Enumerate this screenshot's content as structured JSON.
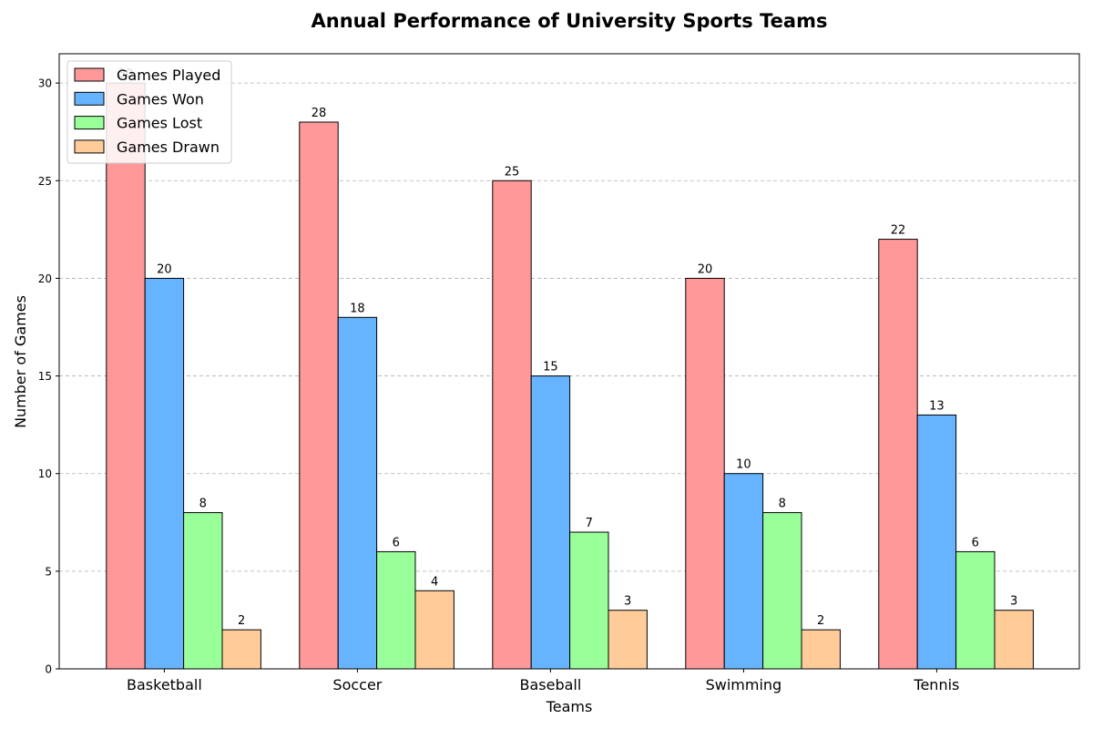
{
  "chart_data": {
    "type": "bar",
    "title": "Annual Performance of University Sports Teams",
    "xlabel": "Teams",
    "ylabel": "Number of Games",
    "categories": [
      "Basketball",
      "Soccer",
      "Baseball",
      "Swimming",
      "Tennis"
    ],
    "series": [
      {
        "name": "Games Played",
        "values": [
          30,
          28,
          25,
          20,
          22
        ],
        "color": "#ff9999"
      },
      {
        "name": "Games Won",
        "values": [
          20,
          18,
          15,
          10,
          13
        ],
        "color": "#66b3ff"
      },
      {
        "name": "Games Lost",
        "values": [
          8,
          6,
          7,
          8,
          6
        ],
        "color": "#99ff99"
      },
      {
        "name": "Games Drawn",
        "values": [
          2,
          4,
          3,
          2,
          3
        ],
        "color": "#ffcc99"
      }
    ],
    "ylim": [
      0,
      31.5
    ],
    "yticks": [
      0,
      5,
      10,
      15,
      20,
      25,
      30
    ],
    "grid": "horizontal dashed",
    "legend_position": "top-left"
  }
}
